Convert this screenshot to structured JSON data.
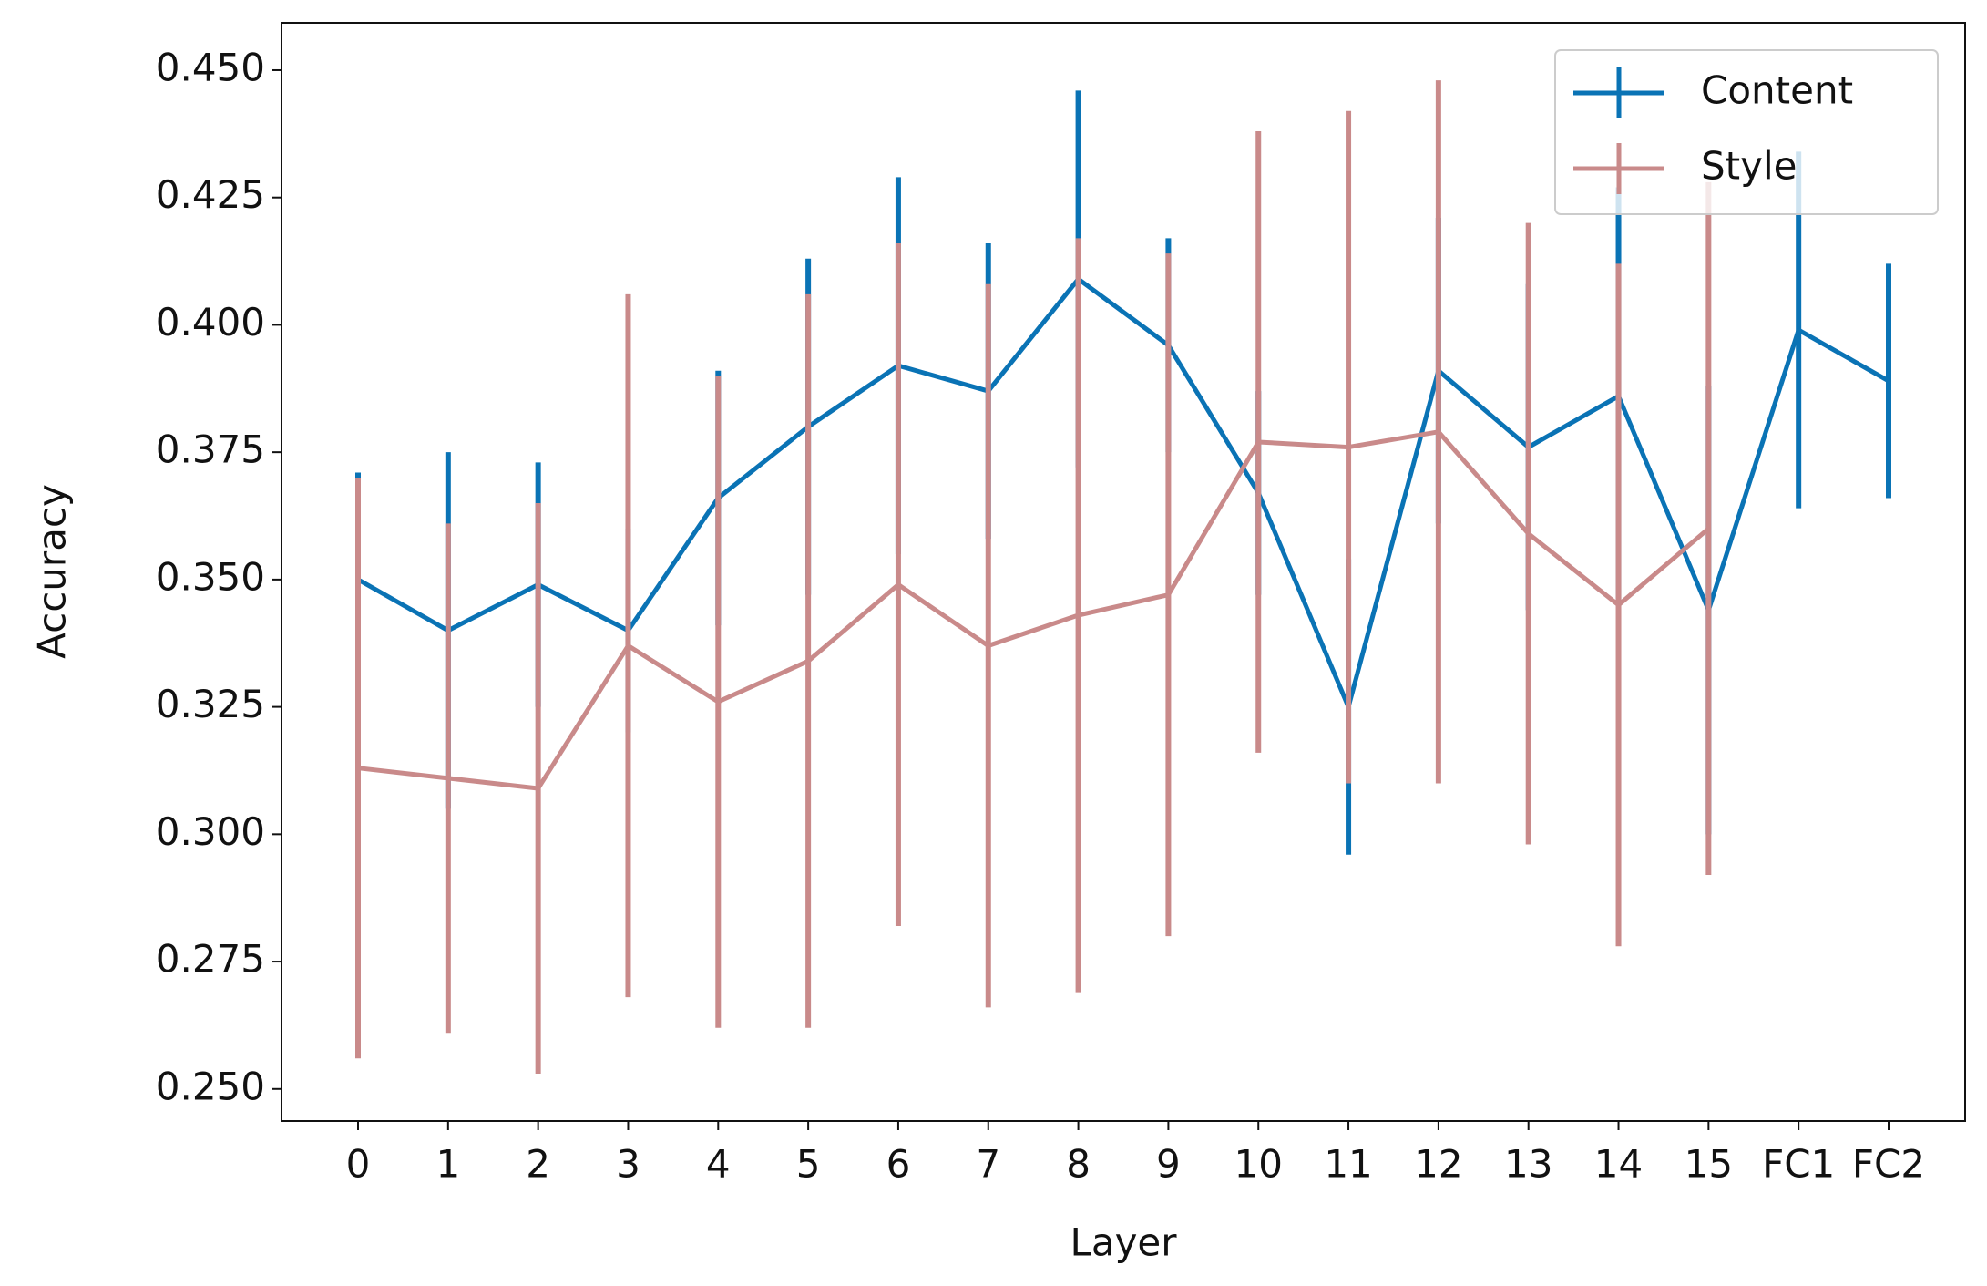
{
  "chart_data": {
    "type": "line",
    "xlabel": "Layer",
    "ylabel": "Accuracy",
    "categories": [
      "0",
      "1",
      "2",
      "3",
      "4",
      "5",
      "6",
      "7",
      "8",
      "9",
      "10",
      "11",
      "12",
      "13",
      "14",
      "15",
      "FC1",
      "FC2"
    ],
    "series": [
      {
        "name": "Content",
        "color": "#0a73b5",
        "values": [
          0.35,
          0.34,
          0.349,
          0.34,
          0.366,
          0.38,
          0.392,
          0.387,
          0.409,
          0.396,
          0.367,
          0.325,
          0.391,
          0.376,
          0.386,
          0.344,
          0.399,
          0.389
        ],
        "errors": [
          0.021,
          0.035,
          0.024,
          0.02,
          0.025,
          0.033,
          0.037,
          0.029,
          0.037,
          0.021,
          0.02,
          0.029,
          0.03,
          0.032,
          0.041,
          0.044,
          0.035,
          0.023
        ]
      },
      {
        "name": "Style",
        "color": "#c98a8a",
        "values": [
          0.313,
          0.311,
          0.309,
          0.337,
          0.326,
          0.334,
          0.349,
          0.337,
          0.343,
          0.347,
          0.377,
          0.376,
          0.379,
          0.359,
          0.345,
          0.36,
          null,
          null
        ],
        "errors": [
          0.057,
          0.05,
          0.056,
          0.069,
          0.064,
          0.072,
          0.067,
          0.071,
          0.074,
          0.067,
          0.061,
          0.066,
          0.069,
          0.061,
          0.067,
          0.068,
          null,
          null
        ]
      }
    ],
    "ylim": [
      0.2437,
      0.4593
    ],
    "yticks": [
      {
        "value": 0.25,
        "label": "0.250"
      },
      {
        "value": 0.275,
        "label": "0.275"
      },
      {
        "value": 0.3,
        "label": "0.300"
      },
      {
        "value": 0.325,
        "label": "0.325"
      },
      {
        "value": 0.35,
        "label": "0.350"
      },
      {
        "value": 0.375,
        "label": "0.375"
      },
      {
        "value": 0.4,
        "label": "0.400"
      },
      {
        "value": 0.425,
        "label": "0.425"
      },
      {
        "value": 0.45,
        "label": "0.450"
      }
    ],
    "legend": "upper right",
    "grid": false
  }
}
